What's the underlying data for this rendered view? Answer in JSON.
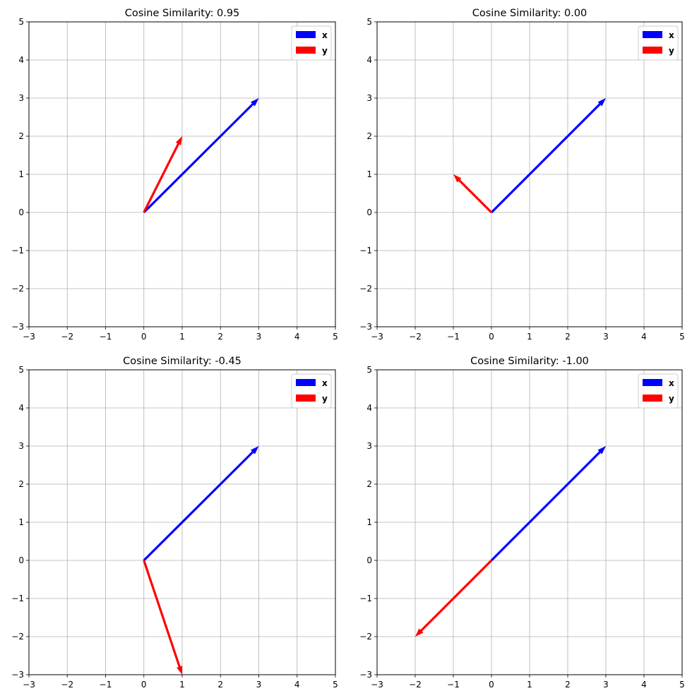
{
  "chart_data": [
    {
      "type": "quiver",
      "title": "Cosine Similarity: 0.95",
      "xlim": [
        -3,
        5
      ],
      "ylim": [
        -3,
        5
      ],
      "xticks": [
        "−3",
        "−2",
        "−1",
        "0",
        "1",
        "2",
        "3",
        "4",
        "5"
      ],
      "yticks": [
        "−3",
        "−2",
        "−1",
        "0",
        "1",
        "2",
        "3",
        "4",
        "5"
      ],
      "grid": true,
      "legend_position": "top-right",
      "series": [
        {
          "name": "x",
          "color": "#0000ff",
          "vector": [
            3,
            3
          ]
        },
        {
          "name": "y",
          "color": "#ff0000",
          "vector": [
            1,
            2
          ]
        }
      ]
    },
    {
      "type": "quiver",
      "title": "Cosine Similarity: 0.00",
      "xlim": [
        -3,
        5
      ],
      "ylim": [
        -3,
        5
      ],
      "xticks": [
        "−3",
        "−2",
        "−1",
        "0",
        "1",
        "2",
        "3",
        "4",
        "5"
      ],
      "yticks": [
        "−3",
        "−2",
        "−1",
        "0",
        "1",
        "2",
        "3",
        "4",
        "5"
      ],
      "grid": true,
      "legend_position": "top-right",
      "series": [
        {
          "name": "x",
          "color": "#0000ff",
          "vector": [
            3,
            3
          ]
        },
        {
          "name": "y",
          "color": "#ff0000",
          "vector": [
            -1,
            1
          ]
        }
      ]
    },
    {
      "type": "quiver",
      "title": "Cosine Similarity: -0.45",
      "xlim": [
        -3,
        5
      ],
      "ylim": [
        -3,
        5
      ],
      "xticks": [
        "−3",
        "−2",
        "−1",
        "0",
        "1",
        "2",
        "3",
        "4",
        "5"
      ],
      "yticks": [
        "−3",
        "−2",
        "−1",
        "0",
        "1",
        "2",
        "3",
        "4",
        "5"
      ],
      "grid": true,
      "legend_position": "top-right",
      "series": [
        {
          "name": "x",
          "color": "#0000ff",
          "vector": [
            3,
            3
          ]
        },
        {
          "name": "y",
          "color": "#ff0000",
          "vector": [
            1,
            -3
          ]
        }
      ]
    },
    {
      "type": "quiver",
      "title": "Cosine Similarity: -1.00",
      "xlim": [
        -3,
        5
      ],
      "ylim": [
        -3,
        5
      ],
      "xticks": [
        "−3",
        "−2",
        "−1",
        "0",
        "1",
        "2",
        "3",
        "4",
        "5"
      ],
      "yticks": [
        "−3",
        "−2",
        "−1",
        "0",
        "1",
        "2",
        "3",
        "4",
        "5"
      ],
      "grid": true,
      "legend_position": "top-right",
      "series": [
        {
          "name": "x",
          "color": "#0000ff",
          "vector": [
            3,
            3
          ]
        },
        {
          "name": "y",
          "color": "#ff0000",
          "vector": [
            -2,
            -2
          ]
        }
      ]
    }
  ]
}
